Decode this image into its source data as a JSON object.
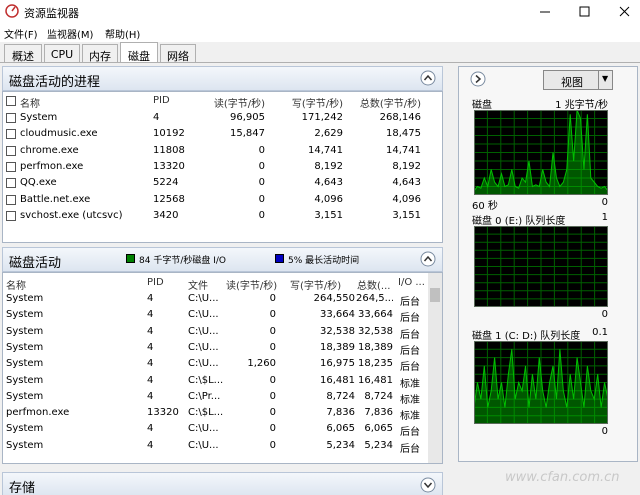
{
  "window": {
    "title": "资源监视器"
  },
  "menu": [
    "文件(F)",
    "监视器(M)",
    "帮助(H)"
  ],
  "tabs": [
    "概述",
    "CPU",
    "内存",
    "磁盘",
    "网络"
  ],
  "active_tab": 3,
  "processes": {
    "title": "磁盘活动的进程",
    "columns": [
      "名称",
      "PID",
      "读(字节/秒)",
      "写(字节/秒)",
      "总数(字节/秒)"
    ],
    "rows": [
      [
        "System",
        "4",
        "96,905",
        "171,242",
        "268,146"
      ],
      [
        "cloudmusic.exe",
        "10192",
        "15,847",
        "2,629",
        "18,475"
      ],
      [
        "chrome.exe",
        "11808",
        "0",
        "14,741",
        "14,741"
      ],
      [
        "perfmon.exe",
        "13320",
        "0",
        "8,192",
        "8,192"
      ],
      [
        "QQ.exe",
        "5224",
        "0",
        "4,643",
        "4,643"
      ],
      [
        "Battle.net.exe",
        "12568",
        "0",
        "4,096",
        "4,096"
      ],
      [
        "svchost.exe (utcsvc)",
        "3420",
        "0",
        "3,151",
        "3,151"
      ]
    ]
  },
  "activity": {
    "title": "磁盘活动",
    "legend": [
      {
        "label": "84 千字节/秒磁盘 I/O",
        "color": "#008000"
      },
      {
        "label": "5% 最长活动时间",
        "color": "#0000c0"
      }
    ],
    "columns": [
      "名称",
      "PID",
      "文件",
      "读(字节/秒)",
      "写(字节/秒)",
      "总数(...",
      "I/O ..."
    ],
    "rows": [
      [
        "System",
        "4",
        "C:\\U...",
        "0",
        "264,550",
        "264,5...",
        "后台"
      ],
      [
        "System",
        "4",
        "C:\\U...",
        "0",
        "33,664",
        "33,664",
        "后台"
      ],
      [
        "System",
        "4",
        "C:\\U...",
        "0",
        "32,538",
        "32,538",
        "后台"
      ],
      [
        "System",
        "4",
        "C:\\U...",
        "0",
        "18,389",
        "18,389",
        "后台"
      ],
      [
        "System",
        "4",
        "C:\\U...",
        "1,260",
        "16,975",
        "18,235",
        "后台"
      ],
      [
        "System",
        "4",
        "C:\\$L...",
        "0",
        "16,481",
        "16,481",
        "标准"
      ],
      [
        "System",
        "4",
        "C:\\Pr...",
        "0",
        "8,724",
        "8,724",
        "标准"
      ],
      [
        "perfmon.exe",
        "13320",
        "C:\\$L...",
        "0",
        "7,836",
        "7,836",
        "标准"
      ],
      [
        "System",
        "4",
        "C:\\U...",
        "0",
        "6,065",
        "6,065",
        "后台"
      ],
      [
        "System",
        "4",
        "C:\\U...",
        "0",
        "5,234",
        "5,234",
        "后台"
      ]
    ]
  },
  "storage": {
    "title": "存储"
  },
  "side": {
    "view_button": "视图",
    "graphs": [
      {
        "title": "磁盘",
        "scale": "1 兆字节/秒",
        "footer_left": "60 秒",
        "footer_right": "0",
        "color": "#00c000",
        "ylim": [
          0,
          1
        ],
        "values": [
          0.05,
          0.1,
          0.08,
          0.2,
          0.1,
          0.3,
          0.15,
          0.1,
          0.25,
          0.1,
          0.12,
          0.3,
          0.1,
          0.08,
          0.2,
          0.15,
          0.4,
          0.1,
          0.12,
          0.1,
          0.3,
          0.15,
          0.1,
          0.5,
          0.2,
          0.1,
          0.15,
          0.3,
          0.95,
          0.4,
          1,
          0.9,
          0.3,
          0.95,
          0.2,
          0.15,
          0.1,
          0.08,
          0.1,
          0.05
        ]
      },
      {
        "title": "磁盘 0 (E:) 队列长度",
        "scale": "1",
        "footer_right": "0"
      },
      {
        "title": "磁盘 1 (C: D:) 队列长度",
        "scale": "0.1",
        "footer_right": "0",
        "color": "#00c000",
        "ylim": [
          0,
          0.1
        ],
        "values": [
          0.02,
          0.05,
          0.03,
          0.07,
          0.02,
          0.04,
          0.08,
          0.03,
          0.05,
          0.02,
          0.06,
          0.09,
          0.03,
          0.05,
          0.04,
          0.07,
          0.02,
          0.06,
          0.03,
          0.08,
          0.04,
          0.02,
          0.05,
          0.07,
          0.03,
          0.09,
          0.04,
          0.02,
          0.06,
          0.03,
          0.08,
          0.05,
          0.02,
          0.07,
          0.04,
          0.03,
          0.06,
          0.02,
          0.05,
          0.03
        ]
      }
    ]
  },
  "watermark": "www.cfan.com.cn"
}
